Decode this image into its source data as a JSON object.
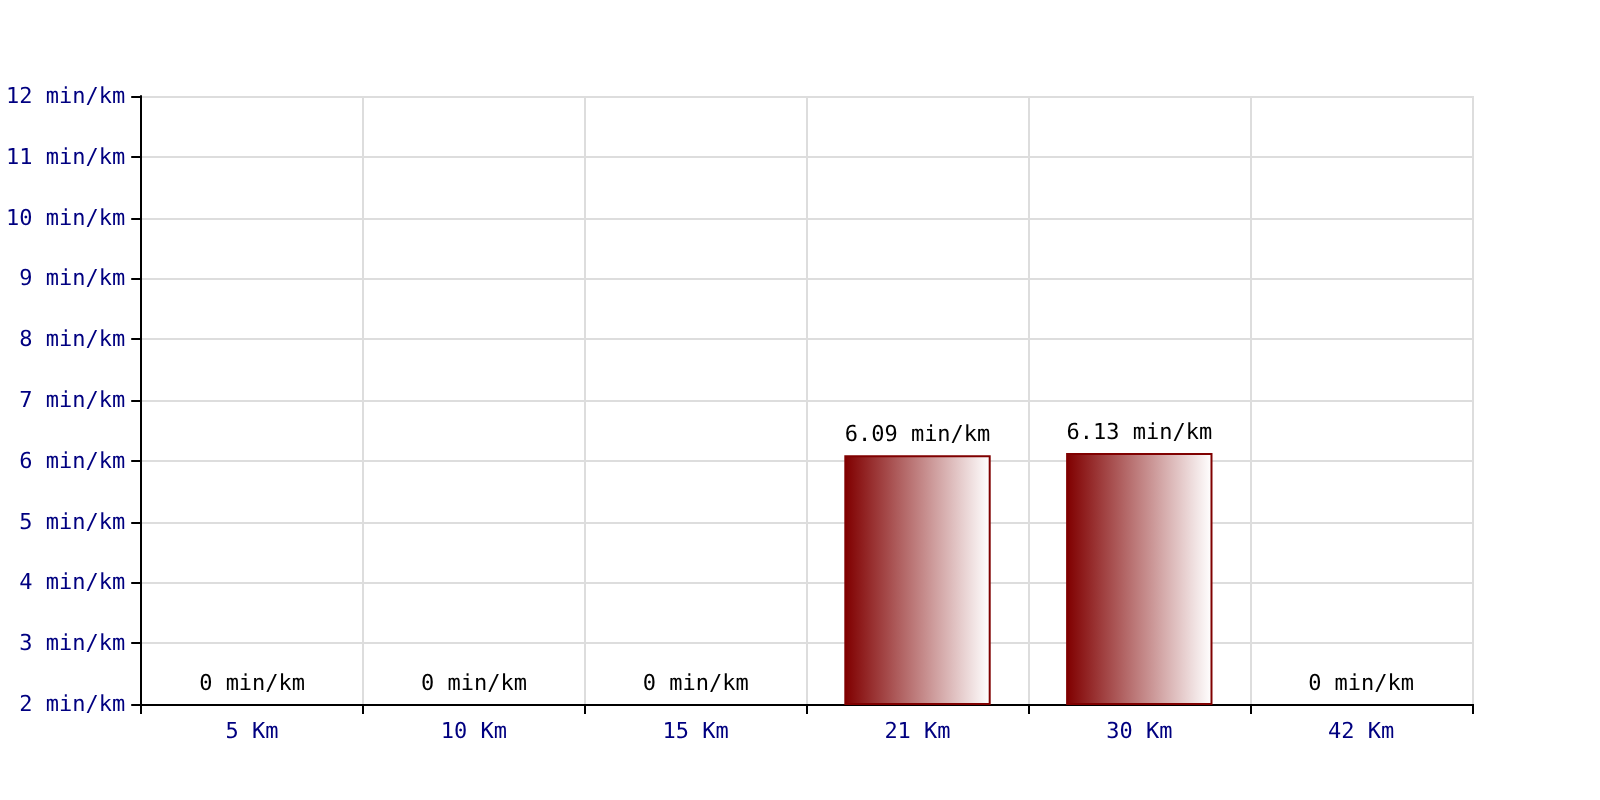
{
  "chart_data": {
    "type": "bar",
    "categories": [
      "5 Km",
      "10 Km",
      "15 Km",
      "21 Km",
      "30 Km",
      "42 Km"
    ],
    "values": [
      null,
      null,
      null,
      6.09,
      6.13,
      null
    ],
    "value_labels": [
      "0 min/km",
      "0 min/km",
      "0 min/km",
      "6.09 min/km",
      "6.13 min/km",
      "0 min/km"
    ],
    "color": "#800000",
    "ylim": [
      2,
      12
    ],
    "yticks": [
      {
        "value": 2,
        "label": "2 min/km"
      },
      {
        "value": 3,
        "label": "3 min/km"
      },
      {
        "value": 4,
        "label": "4 min/km"
      },
      {
        "value": 5,
        "label": "5 min/km"
      },
      {
        "value": 6,
        "label": "6 min/km"
      },
      {
        "value": 7,
        "label": "7 min/km"
      },
      {
        "value": 8,
        "label": "8 min/km"
      },
      {
        "value": 9,
        "label": "9 min/km"
      },
      {
        "value": 10,
        "label": "10 min/km"
      },
      {
        "value": 11,
        "label": "11 min/km"
      },
      {
        "value": 12,
        "label": "12 min/km"
      }
    ],
    "grid": true
  }
}
